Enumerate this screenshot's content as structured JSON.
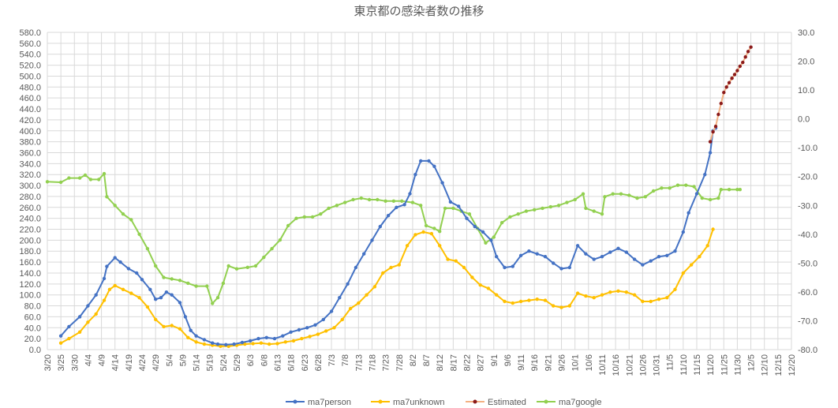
{
  "chart_data": {
    "type": "line",
    "title": "東京都の感染者数の推移",
    "xlabel": "",
    "ylabel": "",
    "x_ticks": [
      "3/20",
      "3/25",
      "3/30",
      "4/4",
      "4/9",
      "4/14",
      "4/19",
      "4/24",
      "4/29",
      "5/4",
      "5/9",
      "5/14",
      "5/19",
      "5/24",
      "5/29",
      "6/3",
      "6/8",
      "6/13",
      "6/18",
      "6/23",
      "6/28",
      "7/3",
      "7/8",
      "7/13",
      "7/18",
      "7/23",
      "7/28",
      "8/2",
      "8/7",
      "8/12",
      "8/17",
      "8/22",
      "8/27",
      "9/1",
      "9/6",
      "9/11",
      "9/16",
      "9/21",
      "9/26",
      "10/1",
      "10/6",
      "10/11",
      "10/16",
      "10/21",
      "10/26",
      "10/31",
      "11/5",
      "11/10",
      "11/15",
      "11/20",
      "11/25",
      "11/30",
      "12/5",
      "12/10",
      "12/15",
      "12/20"
    ],
    "ylim": [
      0,
      580
    ],
    "y_ticks": [
      "0.0",
      "20.0",
      "40.0",
      "60.0",
      "80.0",
      "100.0",
      "120.0",
      "140.0",
      "160.0",
      "180.0",
      "200.0",
      "220.0",
      "240.0",
      "260.0",
      "280.0",
      "300.0",
      "320.0",
      "340.0",
      "360.0",
      "380.0",
      "400.0",
      "420.0",
      "440.0",
      "460.0",
      "480.0",
      "500.0",
      "520.0",
      "540.0",
      "560.0",
      "580.0"
    ],
    "y2lim": [
      -80,
      30
    ],
    "y2_ticks": [
      "-80.0",
      "-70.0",
      "-60.0",
      "-50.0",
      "-40.0",
      "-30.0",
      "-20.0",
      "-10.0",
      "0.0",
      "10.0",
      "20.0",
      "30.0"
    ],
    "grid": true,
    "legend_position": "bottom",
    "series": [
      {
        "name": "ma7person",
        "color": "#4472C4",
        "axis": "left",
        "points": [
          [
            "3/25",
            25
          ],
          [
            "3/28",
            42
          ],
          [
            "4/1",
            60
          ],
          [
            "4/4",
            80
          ],
          [
            "4/7",
            100
          ],
          [
            "4/10",
            130
          ],
          [
            "4/11",
            152
          ],
          [
            "4/14",
            168
          ],
          [
            "4/16",
            160
          ],
          [
            "4/19",
            148
          ],
          [
            "4/22",
            140
          ],
          [
            "4/24",
            128
          ],
          [
            "4/27",
            110
          ],
          [
            "4/29",
            92
          ],
          [
            "5/1",
            95
          ],
          [
            "5/3",
            105
          ],
          [
            "5/5",
            100
          ],
          [
            "5/8",
            86
          ],
          [
            "5/10",
            60
          ],
          [
            "5/12",
            35
          ],
          [
            "5/14",
            25
          ],
          [
            "5/17",
            18
          ],
          [
            "5/20",
            12
          ],
          [
            "5/22",
            10
          ],
          [
            "5/25",
            9
          ],
          [
            "5/28",
            10
          ],
          [
            "5/31",
            13
          ],
          [
            "6/3",
            16
          ],
          [
            "6/6",
            20
          ],
          [
            "6/9",
            22
          ],
          [
            "6/12",
            20
          ],
          [
            "6/15",
            25
          ],
          [
            "6/18",
            32
          ],
          [
            "6/21",
            36
          ],
          [
            "6/24",
            40
          ],
          [
            "6/27",
            45
          ],
          [
            "6/30",
            55
          ],
          [
            "7/3",
            70
          ],
          [
            "7/6",
            95
          ],
          [
            "7/9",
            120
          ],
          [
            "7/12",
            150
          ],
          [
            "7/15",
            175
          ],
          [
            "7/18",
            200
          ],
          [
            "7/21",
            225
          ],
          [
            "7/24",
            245
          ],
          [
            "7/27",
            260
          ],
          [
            "7/30",
            265
          ],
          [
            "8/1",
            285
          ],
          [
            "8/3",
            320
          ],
          [
            "8/5",
            345
          ],
          [
            "8/8",
            345
          ],
          [
            "8/10",
            335
          ],
          [
            "8/13",
            305
          ],
          [
            "8/16",
            270
          ],
          [
            "8/19",
            262
          ],
          [
            "8/22",
            240
          ],
          [
            "8/25",
            225
          ],
          [
            "8/28",
            215
          ],
          [
            "8/31",
            200
          ],
          [
            "9/2",
            170
          ],
          [
            "9/5",
            150
          ],
          [
            "9/8",
            152
          ],
          [
            "9/11",
            172
          ],
          [
            "9/14",
            180
          ],
          [
            "9/17",
            175
          ],
          [
            "9/20",
            170
          ],
          [
            "9/23",
            158
          ],
          [
            "9/26",
            148
          ],
          [
            "9/29",
            150
          ],
          [
            "10/2",
            190
          ],
          [
            "10/5",
            175
          ],
          [
            "10/8",
            165
          ],
          [
            "10/11",
            170
          ],
          [
            "10/14",
            178
          ],
          [
            "10/17",
            185
          ],
          [
            "10/20",
            178
          ],
          [
            "10/23",
            165
          ],
          [
            "10/26",
            155
          ],
          [
            "10/29",
            162
          ],
          [
            "11/1",
            170
          ],
          [
            "11/4",
            172
          ],
          [
            "11/7",
            180
          ],
          [
            "11/10",
            215
          ],
          [
            "11/12",
            250
          ],
          [
            "11/15",
            285
          ],
          [
            "11/18",
            320
          ],
          [
            "11/20",
            360
          ],
          [
            "11/21",
            400
          ],
          [
            "11/22",
            405
          ]
        ]
      },
      {
        "name": "ma7unknown",
        "color": "#FFC000",
        "axis": "left",
        "points": [
          [
            "3/25",
            12
          ],
          [
            "3/28",
            20
          ],
          [
            "4/1",
            32
          ],
          [
            "4/4",
            50
          ],
          [
            "4/7",
            65
          ],
          [
            "4/10",
            90
          ],
          [
            "4/12",
            110
          ],
          [
            "4/14",
            117
          ],
          [
            "4/17",
            110
          ],
          [
            "4/20",
            103
          ],
          [
            "4/23",
            95
          ],
          [
            "4/26",
            78
          ],
          [
            "4/29",
            55
          ],
          [
            "5/2",
            42
          ],
          [
            "5/5",
            44
          ],
          [
            "5/8",
            38
          ],
          [
            "5/11",
            22
          ],
          [
            "5/14",
            14
          ],
          [
            "5/17",
            10
          ],
          [
            "5/20",
            8
          ],
          [
            "5/23",
            6
          ],
          [
            "5/26",
            6
          ],
          [
            "5/29",
            8
          ],
          [
            "6/1",
            10
          ],
          [
            "6/4",
            11
          ],
          [
            "6/7",
            12
          ],
          [
            "6/10",
            10
          ],
          [
            "6/13",
            11
          ],
          [
            "6/16",
            14
          ],
          [
            "6/19",
            16
          ],
          [
            "6/22",
            20
          ],
          [
            "6/25",
            24
          ],
          [
            "6/28",
            28
          ],
          [
            "7/1",
            34
          ],
          [
            "7/4",
            40
          ],
          [
            "7/7",
            55
          ],
          [
            "7/10",
            75
          ],
          [
            "7/13",
            85
          ],
          [
            "7/16",
            100
          ],
          [
            "7/19",
            115
          ],
          [
            "7/22",
            140
          ],
          [
            "7/25",
            150
          ],
          [
            "7/28",
            155
          ],
          [
            "7/31",
            190
          ],
          [
            "8/3",
            210
          ],
          [
            "8/6",
            215
          ],
          [
            "8/9",
            212
          ],
          [
            "8/12",
            190
          ],
          [
            "8/15",
            165
          ],
          [
            "8/18",
            162
          ],
          [
            "8/21",
            150
          ],
          [
            "8/24",
            132
          ],
          [
            "8/27",
            118
          ],
          [
            "8/30",
            112
          ],
          [
            "9/2",
            100
          ],
          [
            "9/5",
            88
          ],
          [
            "9/8",
            85
          ],
          [
            "9/11",
            88
          ],
          [
            "9/14",
            90
          ],
          [
            "9/17",
            92
          ],
          [
            "9/20",
            90
          ],
          [
            "9/23",
            80
          ],
          [
            "9/26",
            77
          ],
          [
            "9/29",
            80
          ],
          [
            "10/2",
            103
          ],
          [
            "10/5",
            98
          ],
          [
            "10/8",
            95
          ],
          [
            "10/11",
            100
          ],
          [
            "10/14",
            105
          ],
          [
            "10/17",
            107
          ],
          [
            "10/20",
            105
          ],
          [
            "10/23",
            100
          ],
          [
            "10/26",
            88
          ],
          [
            "10/29",
            88
          ],
          [
            "11/1",
            92
          ],
          [
            "11/4",
            95
          ],
          [
            "11/7",
            110
          ],
          [
            "11/10",
            140
          ],
          [
            "11/13",
            155
          ],
          [
            "11/16",
            170
          ],
          [
            "11/19",
            190
          ],
          [
            "11/21",
            220
          ]
        ]
      },
      {
        "name": "Estimated",
        "color": "#8B1A1A",
        "axis": "left",
        "points": [
          [
            "11/20",
            380
          ],
          [
            "11/21",
            398
          ],
          [
            "11/22",
            408
          ],
          [
            "11/23",
            430
          ],
          [
            "11/24",
            450
          ],
          [
            "11/25",
            470
          ],
          [
            "11/26",
            480
          ],
          [
            "11/27",
            488
          ],
          [
            "11/28",
            496
          ],
          [
            "11/29",
            503
          ],
          [
            "11/30",
            510
          ],
          [
            "12/1",
            518
          ],
          [
            "12/2",
            525
          ],
          [
            "12/3",
            535
          ],
          [
            "12/4",
            545
          ],
          [
            "12/5",
            553
          ]
        ]
      },
      {
        "name": "ma7google",
        "color": "#92D050",
        "axis": "right",
        "points": [
          [
            "3/20",
            -21.8
          ],
          [
            "3/25",
            -22
          ],
          [
            "3/28",
            -20.5
          ],
          [
            "4/1",
            -20.5
          ],
          [
            "4/3",
            -19.5
          ],
          [
            "4/5",
            -21
          ],
          [
            "4/8",
            -21
          ],
          [
            "4/10",
            -19
          ],
          [
            "4/11",
            -27
          ],
          [
            "4/14",
            -30
          ],
          [
            "4/17",
            -33
          ],
          [
            "4/20",
            -35
          ],
          [
            "4/23",
            -40
          ],
          [
            "4/26",
            -45
          ],
          [
            "4/29",
            -51
          ],
          [
            "5/2",
            -55
          ],
          [
            "5/5",
            -55.5
          ],
          [
            "5/8",
            -56
          ],
          [
            "5/11",
            -57
          ],
          [
            "5/14",
            -58
          ],
          [
            "5/18",
            -58
          ],
          [
            "5/20",
            -64
          ],
          [
            "5/22",
            -62
          ],
          [
            "5/24",
            -57
          ],
          [
            "5/26",
            -51
          ],
          [
            "5/29",
            -52
          ],
          [
            "6/2",
            -51.5
          ],
          [
            "6/5",
            -51
          ],
          [
            "6/8",
            -48
          ],
          [
            "6/11",
            -45
          ],
          [
            "6/14",
            -42
          ],
          [
            "6/17",
            -37
          ],
          [
            "6/20",
            -34.5
          ],
          [
            "6/23",
            -34
          ],
          [
            "6/26",
            -34
          ],
          [
            "6/29",
            -33
          ],
          [
            "7/2",
            -31
          ],
          [
            "7/5",
            -30
          ],
          [
            "7/8",
            -29
          ],
          [
            "7/11",
            -28
          ],
          [
            "7/14",
            -27.5
          ],
          [
            "7/17",
            -28
          ],
          [
            "7/20",
            -28
          ],
          [
            "7/23",
            -28.5
          ],
          [
            "7/26",
            -28.5
          ],
          [
            "7/29",
            -28.5
          ],
          [
            "8/2",
            -29
          ],
          [
            "8/5",
            -30
          ],
          [
            "8/7",
            -37
          ],
          [
            "8/10",
            -38
          ],
          [
            "8/12",
            -39
          ],
          [
            "8/14",
            -31
          ],
          [
            "8/17",
            -31
          ],
          [
            "8/20",
            -32
          ],
          [
            "8/23",
            -33
          ],
          [
            "8/26",
            -38
          ],
          [
            "8/29",
            -43
          ],
          [
            "9/1",
            -41
          ],
          [
            "9/4",
            -36
          ],
          [
            "9/7",
            -34
          ],
          [
            "9/10",
            -33
          ],
          [
            "9/13",
            -32
          ],
          [
            "9/16",
            -31.5
          ],
          [
            "9/19",
            -31
          ],
          [
            "9/22",
            -30.5
          ],
          [
            "9/25",
            -30
          ],
          [
            "9/28",
            -29
          ],
          [
            "10/1",
            -28
          ],
          [
            "10/4",
            -26
          ],
          [
            "10/5",
            -31
          ],
          [
            "10/8",
            -32
          ],
          [
            "10/11",
            -33
          ],
          [
            "10/12",
            -27
          ],
          [
            "10/15",
            -26
          ],
          [
            "10/18",
            -26
          ],
          [
            "10/21",
            -26.5
          ],
          [
            "10/24",
            -27.5
          ],
          [
            "10/27",
            -27
          ],
          [
            "10/30",
            -25
          ],
          [
            "11/2",
            -24
          ],
          [
            "11/5",
            -24
          ],
          [
            "11/8",
            -23
          ],
          [
            "11/11",
            -23
          ],
          [
            "11/14",
            -23.5
          ],
          [
            "11/17",
            -27.5
          ],
          [
            "11/20",
            -28
          ],
          [
            "11/23",
            -27.5
          ],
          [
            "11/24",
            -24.5
          ],
          [
            "11/27",
            -24.5
          ],
          [
            "11/30",
            -24.5
          ],
          [
            "12/1",
            -24.5
          ]
        ]
      }
    ]
  }
}
